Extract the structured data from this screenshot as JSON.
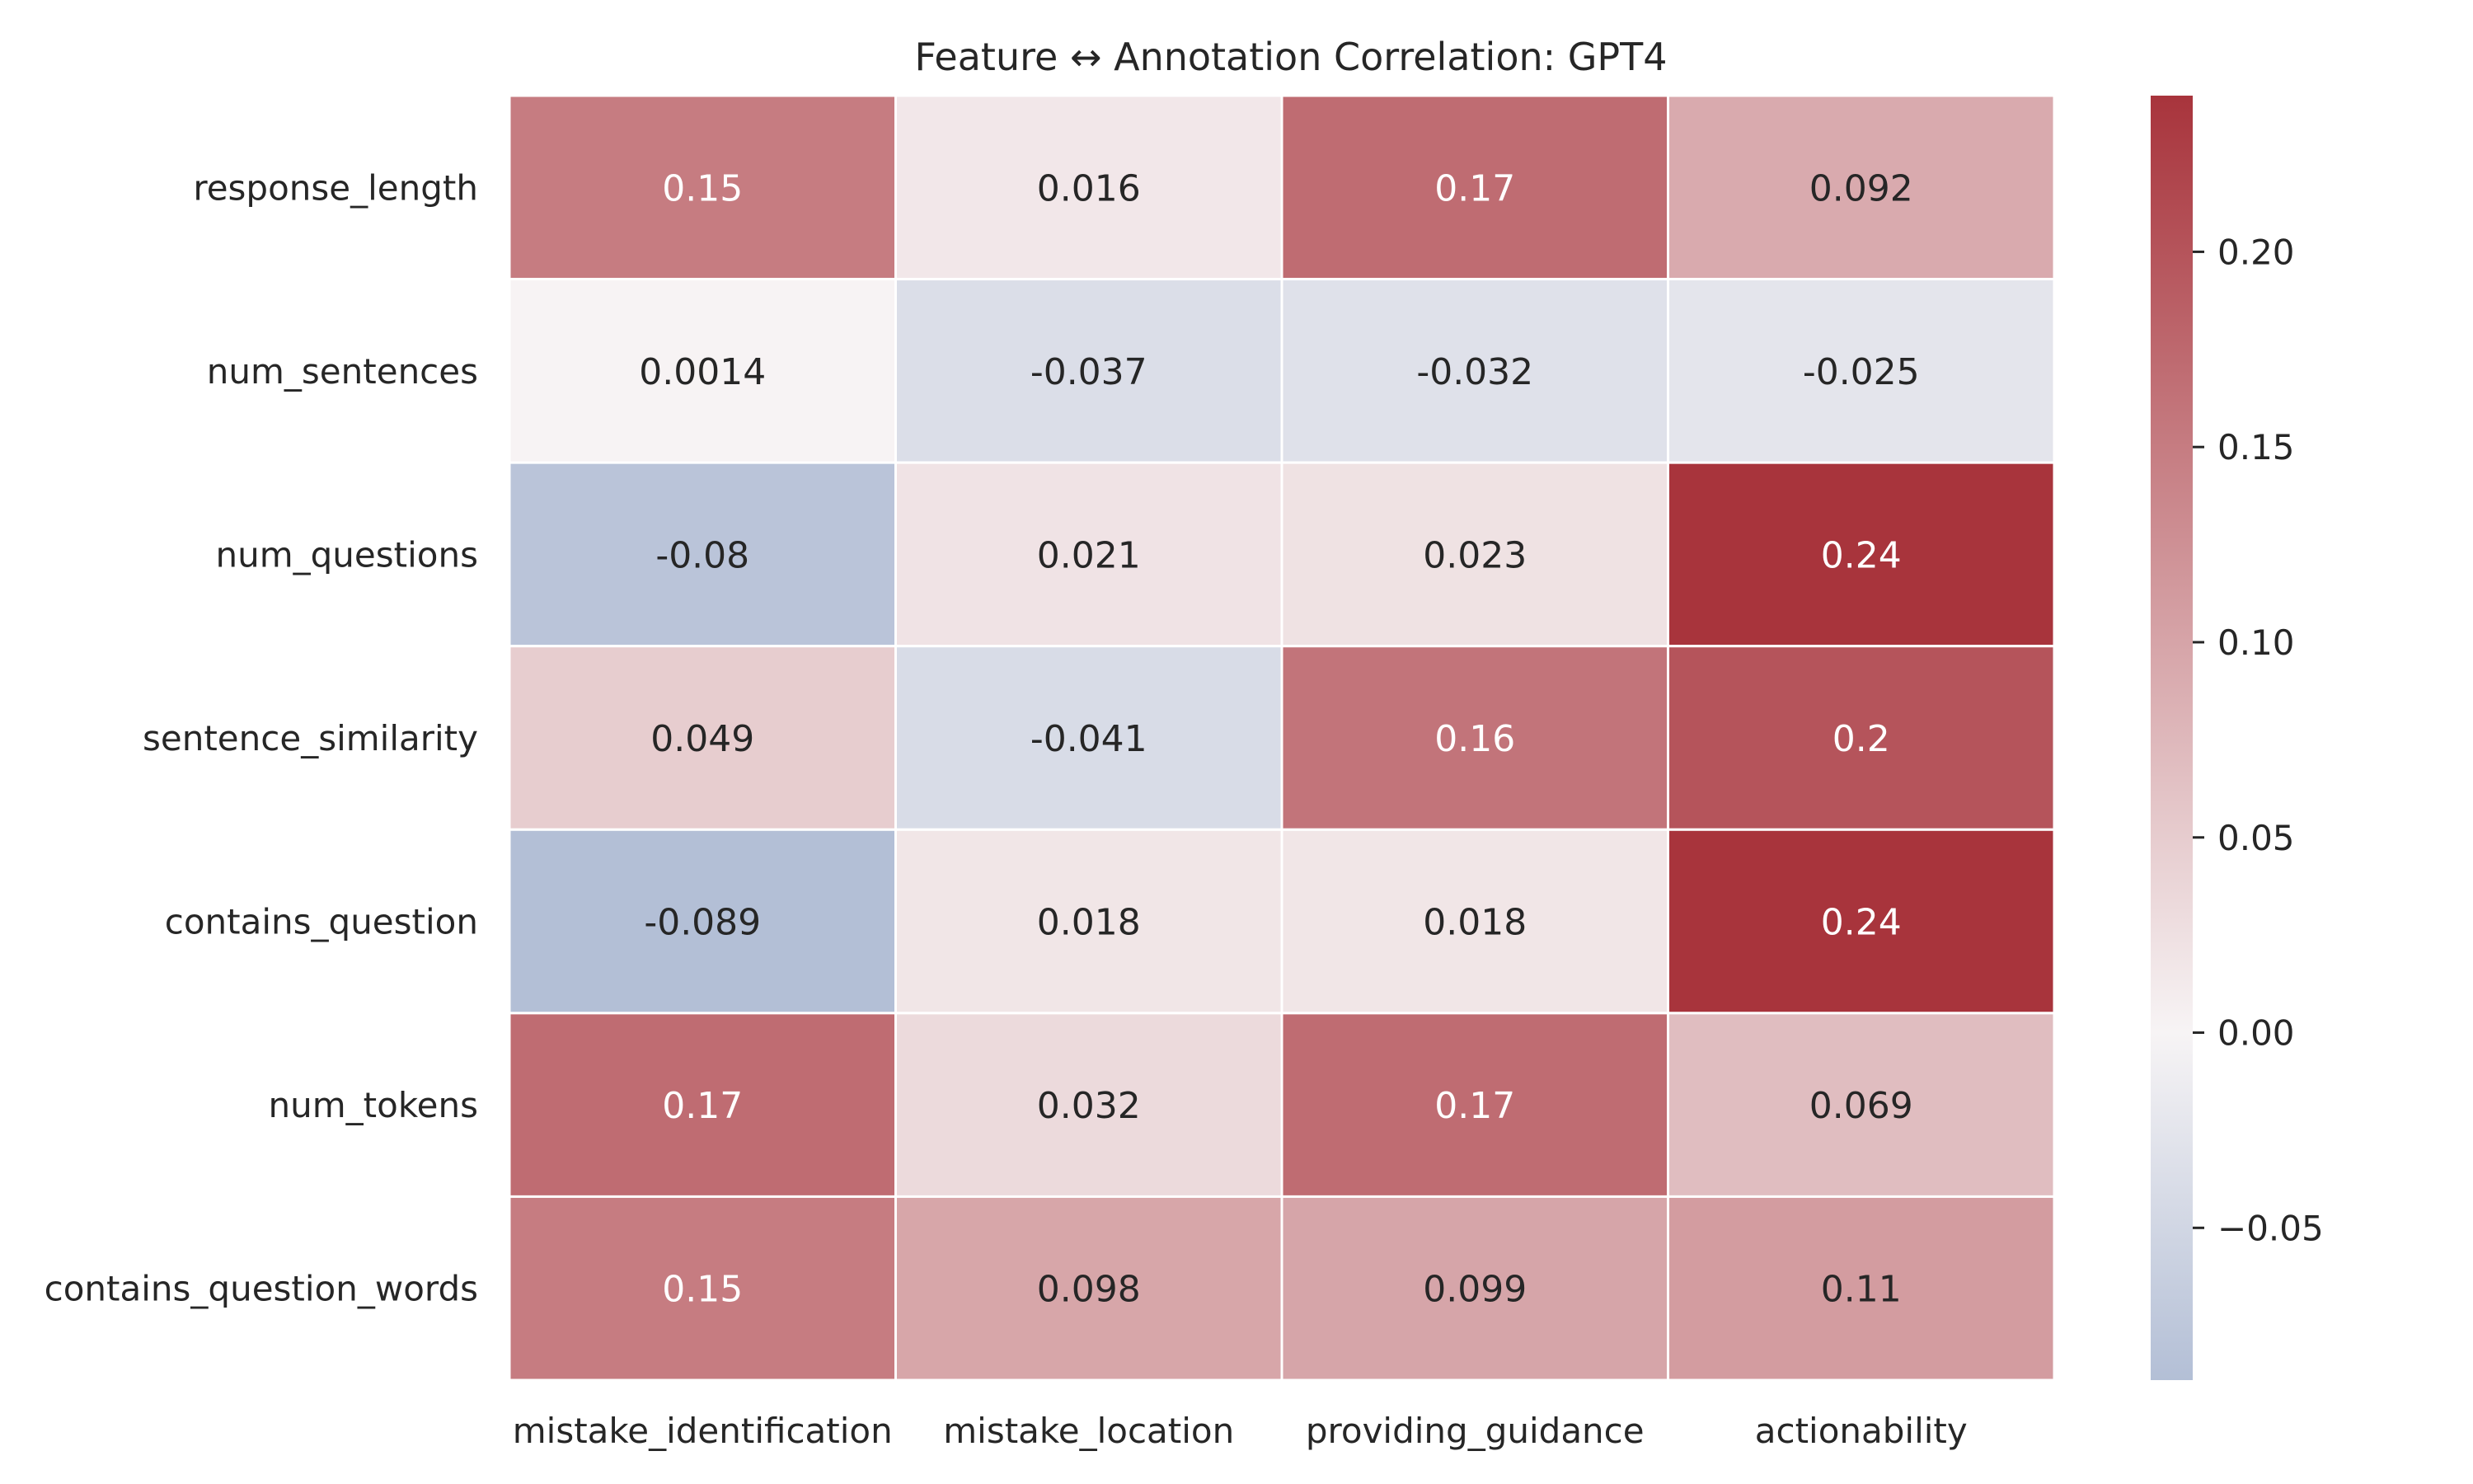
{
  "chart_data": {
    "type": "heatmap",
    "title": "Feature ↔ Annotation Correlation: GPT4",
    "xlabel": "",
    "ylabel": "",
    "columns": [
      "mistake_identification",
      "mistake_location",
      "providing_guidance",
      "actionability"
    ],
    "rows": [
      "response_length",
      "num_sentences",
      "num_questions",
      "sentence_similarity",
      "contains_question",
      "num_tokens",
      "contains_question_words"
    ],
    "values": [
      [
        0.15,
        0.016,
        0.17,
        0.092
      ],
      [
        0.0014,
        -0.037,
        -0.032,
        -0.025
      ],
      [
        -0.08,
        0.021,
        0.023,
        0.24
      ],
      [
        0.049,
        -0.041,
        0.16,
        0.2
      ],
      [
        -0.089,
        0.018,
        0.018,
        0.24
      ],
      [
        0.17,
        0.032,
        0.17,
        0.069
      ],
      [
        0.15,
        0.098,
        0.099,
        0.11
      ]
    ],
    "labels": [
      [
        "0.15",
        "0.016",
        "0.17",
        "0.092"
      ],
      [
        "0.0014",
        "-0.037",
        "-0.032",
        "-0.025"
      ],
      [
        "-0.08",
        "0.021",
        "0.023",
        "0.24"
      ],
      [
        "0.049",
        "-0.041",
        "0.16",
        "0.2"
      ],
      [
        "-0.089",
        "0.018",
        "0.018",
        "0.24"
      ],
      [
        "0.17",
        "0.032",
        "0.17",
        "0.069"
      ],
      [
        "0.15",
        "0.098",
        "0.099",
        "0.11"
      ]
    ],
    "colorbar": {
      "vmin": -0.089,
      "vmax": 0.24,
      "center": 0,
      "ticks": [
        -0.05,
        0.0,
        0.05,
        0.1,
        0.15,
        0.2
      ],
      "tick_labels": [
        "−0.05",
        "0.00",
        "0.05",
        "0.10",
        "0.15",
        "0.20"
      ],
      "placement": "right"
    },
    "colormap": {
      "negative": "#b3bfd6",
      "neutral": "#f7f4f5",
      "positive": "#a8343c"
    },
    "grid": false
  }
}
